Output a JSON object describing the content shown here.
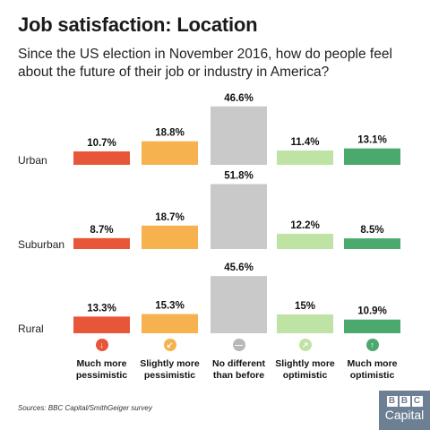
{
  "title": "Job satisfaction: Location",
  "subtitle": "Since the US election in November 2016, how do people feel about the future of their job or industry in America?",
  "source": "Sources: BBC Capital/SmithGeiger survey",
  "logo": {
    "letters": [
      "B",
      "B",
      "C"
    ],
    "word": "Capital"
  },
  "chart_data": {
    "type": "bar",
    "title": "Job satisfaction: Location",
    "categories": [
      "Much more pessimistic",
      "Slightly more pessimistic",
      "No different than before",
      "Slightly more optimistic",
      "Much more optimistic"
    ],
    "category_lines": [
      [
        "Much more",
        "pessimistic"
      ],
      [
        "Slightly more",
        "pessimistic"
      ],
      [
        "No different",
        "than before"
      ],
      [
        "Slightly more",
        "optimistic"
      ],
      [
        "Much more",
        "optimistic"
      ]
    ],
    "colors": [
      "#e8563a",
      "#f6b24e",
      "#c9c9c9",
      "#bfe3a4",
      "#4ba96e"
    ],
    "icon_names": [
      "thumbs-down-icon",
      "frown-icon",
      "neutral-icon",
      "smile-icon",
      "thumbs-up-icon"
    ],
    "icon_glyphs": [
      "↓",
      "↙",
      "—",
      "↗",
      "↑"
    ],
    "value_suffix": "%",
    "ylim": [
      0,
      55
    ],
    "series": [
      {
        "name": "Urban",
        "values": [
          10.7,
          18.8,
          46.6,
          11.4,
          13.1
        ],
        "labels": [
          "10.7%",
          "18.8%",
          "46.6%",
          "11.4%",
          "13.1%"
        ]
      },
      {
        "name": "Suburban",
        "values": [
          8.7,
          18.7,
          51.8,
          12.2,
          8.5
        ],
        "labels": [
          "8.7%",
          "18.7%",
          "51.8%",
          "12.2%",
          "8.5%"
        ]
      },
      {
        "name": "Rural",
        "values": [
          13.3,
          15.3,
          45.6,
          15,
          10.9
        ],
        "labels": [
          "13.3%",
          "15.3%",
          "45.6%",
          "15%",
          "10.9%"
        ]
      }
    ]
  }
}
